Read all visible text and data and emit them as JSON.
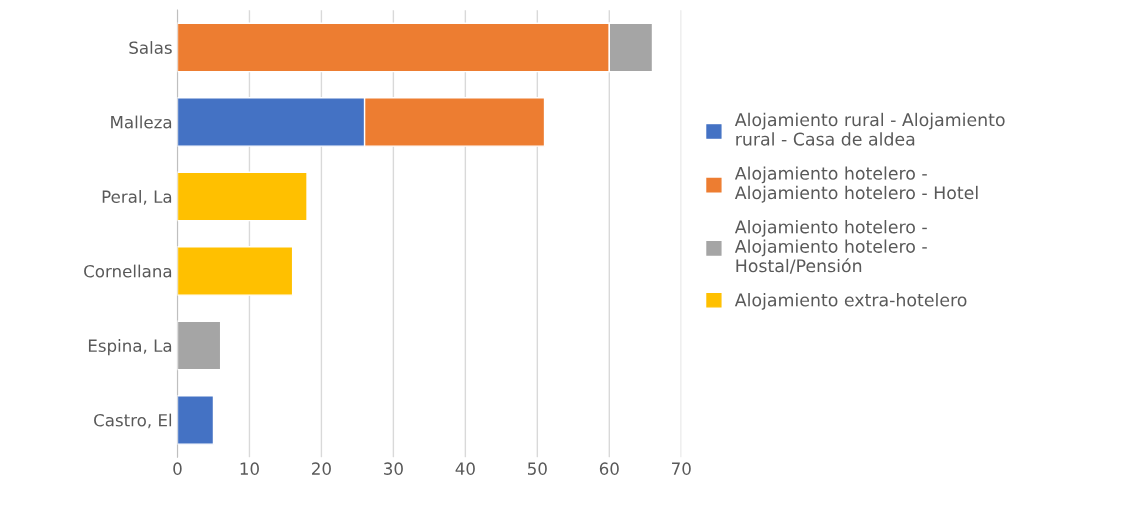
{
  "chart_data": {
    "type": "bar",
    "orientation": "horizontal",
    "stacked": true,
    "categories": [
      "Salas",
      "Malleza",
      "Peral, La",
      "Cornellana",
      "Espina, La",
      "Castro, El"
    ],
    "series": [
      {
        "name": "Alojamiento rural - Alojamiento rural - Casa de aldea",
        "color": "#4472c4",
        "values": [
          null,
          26,
          null,
          null,
          null,
          5
        ]
      },
      {
        "name": "Alojamiento hotelero - Alojamiento hotelero - Hotel",
        "color": "#ed7d31",
        "values": [
          60,
          25,
          null,
          null,
          null,
          null
        ]
      },
      {
        "name": "Alojamiento hotelero - Alojamiento hotelero - Hostal/Pensión",
        "color": "#a5a5a5",
        "values": [
          6,
          null,
          null,
          null,
          6,
          null
        ]
      },
      {
        "name": "Alojamiento extra-hotelero",
        "color": "#ffc000",
        "values": [
          null,
          null,
          18,
          16,
          null,
          null
        ]
      }
    ],
    "xlim": [
      0,
      70
    ],
    "xticks": [
      0,
      10,
      20,
      30,
      40,
      50,
      60,
      70
    ],
    "grid": "x",
    "legend": "right"
  }
}
